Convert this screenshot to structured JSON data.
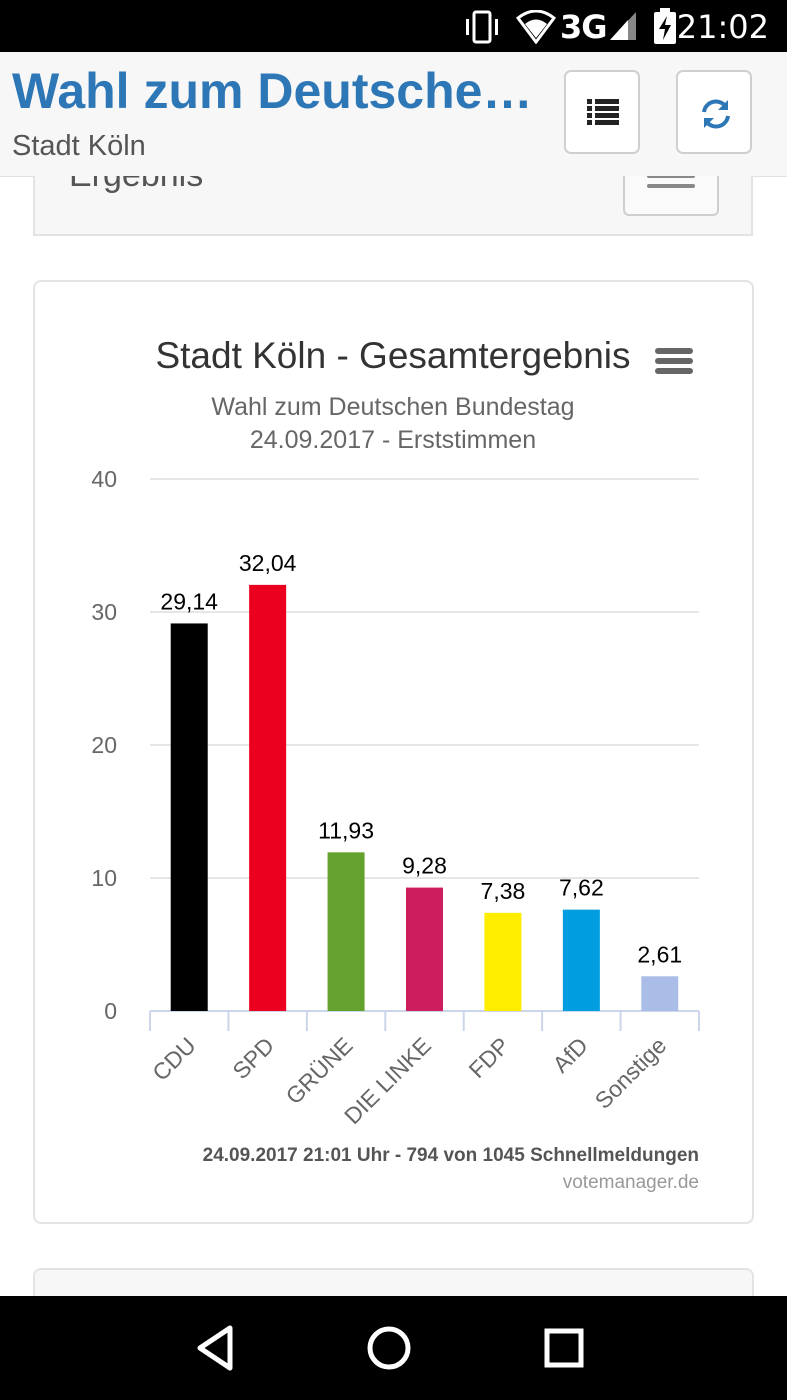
{
  "status_bar": {
    "network": "3G",
    "time": "21:02"
  },
  "header": {
    "title": "Wahl zum Deutschen Bundestag",
    "subtitle": "Stadt Köln"
  },
  "result_panel": {
    "heading": "Ergebnis"
  },
  "chart": {
    "footer_note": "24.09.2017 21:01 Uhr - 794 von 1045 Schnellmeldungen",
    "credit": "votemanager.de"
  },
  "chart_data": {
    "type": "bar",
    "title": "Stadt Köln - Gesamtergebnis",
    "subtitle_lines": [
      "Wahl zum Deutschen Bundestag",
      "24.09.2017 - Erststimmen"
    ],
    "categories": [
      "CDU",
      "SPD",
      "GRÜNE",
      "DIE LINKE",
      "FDP",
      "AfD",
      "Sonstige"
    ],
    "values": [
      29.14,
      32.04,
      11.93,
      9.28,
      7.38,
      7.62,
      2.61
    ],
    "value_labels": [
      "29,14",
      "32,04",
      "11,93",
      "9,28",
      "7,38",
      "7,62",
      "2,61"
    ],
    "colors": [
      "#000000",
      "#eb001f",
      "#64a12d",
      "#cd1d5c",
      "#ffed00",
      "#009ee0",
      "#aabde6"
    ],
    "y_ticks": [
      0,
      10,
      20,
      30,
      40
    ],
    "ylim": [
      0,
      40
    ],
    "grid": true,
    "legend": "none",
    "xlabel": "",
    "ylabel": ""
  }
}
